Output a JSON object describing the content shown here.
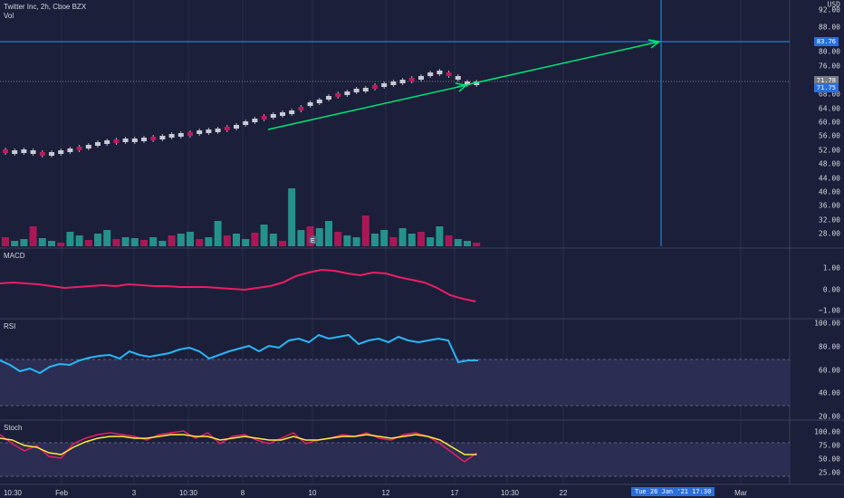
{
  "header": {
    "title": "Twitter Inc, 2h, Cboe BZX",
    "vol_label": "Vol"
  },
  "price_axis": {
    "currency": "USD",
    "ticks": [
      "92.00",
      "88.00",
      "84.00",
      "80.00",
      "76.00",
      "72.00",
      "68.00",
      "64.00",
      "60.00",
      "56.00",
      "52.00",
      "48.00",
      "44.00",
      "40.00",
      "36.00",
      "32.00",
      "28.00"
    ],
    "tags": [
      {
        "text": "83.76",
        "color": "#2a6fdb"
      },
      {
        "text": "71.78",
        "color": "#787b86"
      },
      {
        "text": "71.75",
        "color": "#2a6fdb"
      }
    ]
  },
  "macd": {
    "label": "MACD",
    "ticks": [
      "1.00",
      "0.00",
      "−1.00"
    ]
  },
  "rsi": {
    "label": "RSI",
    "ticks": [
      "100.00",
      "80.00",
      "60.00",
      "40.00",
      "20.00"
    ]
  },
  "stoch": {
    "label": "Stoch",
    "ticks": [
      "100.00",
      "75.00",
      "50.00",
      "25.00"
    ]
  },
  "time_axis": {
    "labels": [
      "10:30",
      "Feb",
      "3",
      "10:30",
      "8",
      "10",
      "12",
      "17",
      "10:30",
      "22",
      "Mar"
    ],
    "crosshair_time": "Tue 26 Jan '21 17:30"
  },
  "colors": {
    "background": "#1c1f3a",
    "up": "#26a69a",
    "down": "#c2185b",
    "macd": "#e91e63",
    "rsi": "#29b6f6",
    "stoch_k": "#e91e63",
    "stoch_d": "#ffeb3b",
    "arrow": "#00e676",
    "crosshair": "#2196f3"
  }
}
